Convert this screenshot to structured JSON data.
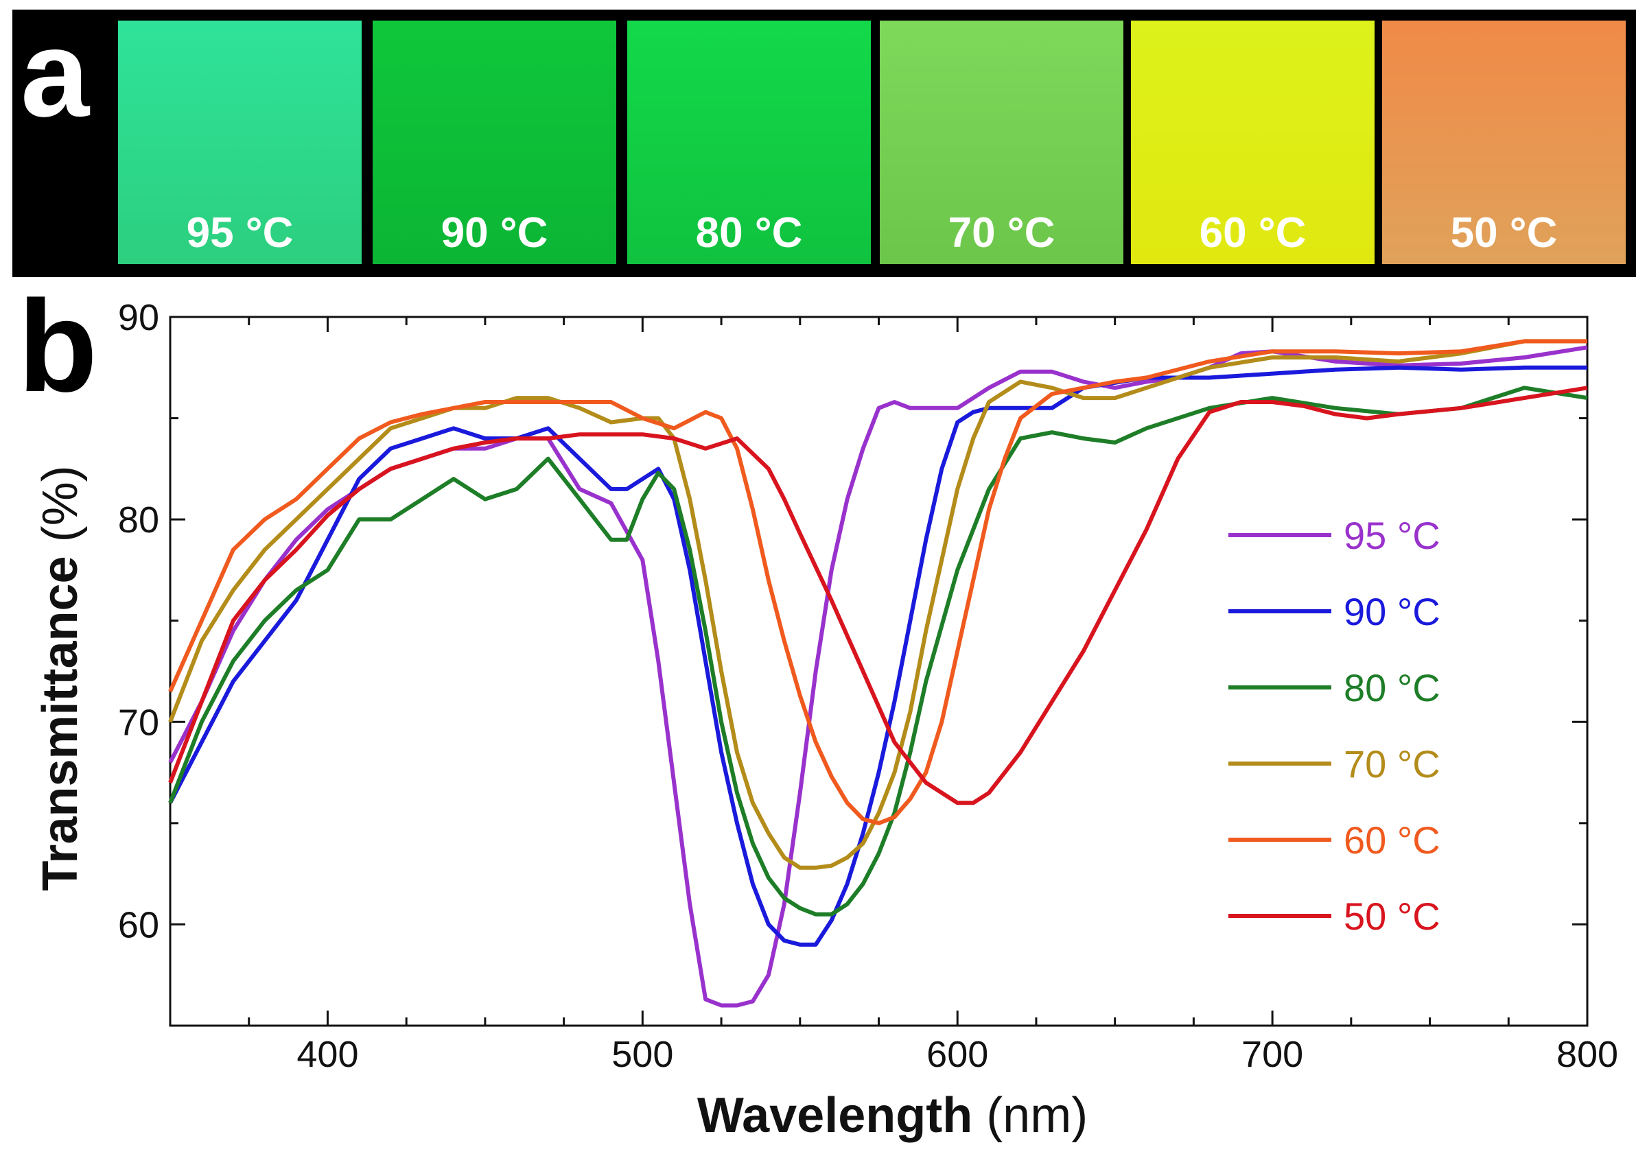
{
  "panel_a": {
    "label": "a",
    "swatches": [
      {
        "label": "95 °C",
        "color_top": "#2fe39a",
        "color_bottom": "#2ccf7e"
      },
      {
        "label": "90 °C",
        "color_top": "#0fc73a",
        "color_bottom": "#0bb535"
      },
      {
        "label": "80 °C",
        "color_top": "#13d94a",
        "color_bottom": "#10c23f"
      },
      {
        "label": "70 °C",
        "color_top": "#7ed85a",
        "color_bottom": "#6cc64a"
      },
      {
        "label": "60 °C",
        "color_top": "#dcf21a",
        "color_bottom": "#e1e810"
      },
      {
        "label": "50 °C",
        "color_top": "#f08a48",
        "color_bottom": "#e0a25a"
      }
    ]
  },
  "panel_b": {
    "label": "b"
  },
  "chart_data": {
    "type": "line",
    "xlabel_main": "Wavelength",
    "xlabel_unit": " (nm)",
    "ylabel_main": "Transmittance",
    "ylabel_unit": " (%)",
    "xlim": [
      350,
      800
    ],
    "ylim": [
      55,
      90
    ],
    "xticks": [
      400,
      500,
      600,
      700,
      800
    ],
    "yticks": [
      60,
      70,
      80,
      90
    ],
    "legend_position": "right",
    "series": [
      {
        "name": "95 °C",
        "color": "#9932cc",
        "x": [
          350,
          360,
          370,
          380,
          390,
          400,
          410,
          420,
          430,
          440,
          450,
          460,
          470,
          480,
          490,
          500,
          505,
          510,
          515,
          520,
          525,
          530,
          535,
          540,
          545,
          550,
          555,
          560,
          565,
          570,
          575,
          580,
          585,
          590,
          600,
          610,
          620,
          630,
          640,
          650,
          660,
          670,
          680,
          690,
          700,
          720,
          740,
          760,
          780,
          800
        ],
        "y": [
          68,
          71,
          74.5,
          77,
          79,
          80.5,
          81.5,
          82.5,
          83,
          83.5,
          83.5,
          84,
          84,
          81.5,
          80.8,
          78,
          73,
          67,
          61,
          56.3,
          56,
          56,
          56.2,
          57.5,
          61,
          66.5,
          72.5,
          77.5,
          81,
          83.5,
          85.5,
          85.8,
          85.5,
          85.5,
          85.5,
          86.5,
          87.3,
          87.3,
          86.8,
          86.5,
          86.8,
          87,
          87.5,
          88.2,
          88.3,
          87.8,
          87.6,
          87.7,
          88,
          88.5
        ]
      },
      {
        "name": "90 °C",
        "color": "#1a1adc",
        "x": [
          350,
          360,
          370,
          380,
          390,
          400,
          410,
          420,
          430,
          440,
          450,
          460,
          470,
          480,
          490,
          495,
          500,
          505,
          510,
          515,
          520,
          525,
          530,
          535,
          540,
          545,
          550,
          555,
          560,
          565,
          570,
          575,
          580,
          585,
          590,
          595,
          600,
          605,
          610,
          620,
          630,
          640,
          660,
          680,
          700,
          720,
          740,
          760,
          780,
          800
        ],
        "y": [
          66,
          69,
          72,
          74,
          76,
          79,
          82,
          83.5,
          84,
          84.5,
          84,
          84,
          84.5,
          83,
          81.5,
          81.5,
          82,
          82.5,
          81,
          77.5,
          73,
          68.5,
          65,
          62,
          60,
          59.2,
          59,
          59,
          60.2,
          62,
          64.5,
          67.5,
          71,
          75,
          79,
          82.5,
          84.8,
          85.3,
          85.5,
          85.5,
          85.5,
          86.5,
          87,
          87,
          87.2,
          87.4,
          87.5,
          87.4,
          87.5,
          87.5
        ]
      },
      {
        "name": "80 °C",
        "color": "#1e7e28",
        "x": [
          350,
          360,
          370,
          380,
          390,
          400,
          410,
          420,
          430,
          440,
          450,
          460,
          470,
          480,
          490,
          495,
          500,
          505,
          510,
          515,
          520,
          525,
          530,
          535,
          540,
          545,
          550,
          555,
          560,
          565,
          570,
          575,
          580,
          585,
          590,
          600,
          610,
          620,
          630,
          640,
          650,
          660,
          680,
          700,
          720,
          740,
          760,
          780,
          800
        ],
        "y": [
          66,
          70,
          73,
          75,
          76.5,
          77.5,
          80,
          80,
          81,
          82,
          81,
          81.5,
          83,
          81,
          79,
          79,
          81,
          82.3,
          81.5,
          78.5,
          74.5,
          70,
          66.5,
          64,
          62.3,
          61.3,
          60.8,
          60.5,
          60.5,
          61,
          62,
          63.5,
          65.5,
          68.5,
          72,
          77.5,
          81.5,
          84,
          84.3,
          84,
          83.8,
          84.5,
          85.5,
          86,
          85.5,
          85.2,
          85.5,
          86.5,
          86
        ]
      },
      {
        "name": "70 °C",
        "color": "#b38c1a",
        "x": [
          350,
          360,
          370,
          380,
          390,
          400,
          410,
          420,
          430,
          440,
          450,
          460,
          470,
          480,
          490,
          500,
          505,
          510,
          515,
          520,
          525,
          530,
          535,
          540,
          545,
          550,
          555,
          560,
          565,
          570,
          575,
          580,
          585,
          590,
          595,
          600,
          605,
          610,
          620,
          630,
          640,
          650,
          660,
          680,
          700,
          720,
          740,
          760,
          780,
          800
        ],
        "y": [
          70,
          74,
          76.5,
          78.5,
          80,
          81.5,
          83,
          84.5,
          85,
          85.5,
          85.5,
          86,
          86,
          85.5,
          84.8,
          85,
          85,
          84,
          81,
          77,
          72.5,
          68.5,
          66,
          64.5,
          63.3,
          62.8,
          62.8,
          62.9,
          63.3,
          64,
          65.5,
          67.5,
          70.5,
          74.5,
          78,
          81.5,
          84,
          85.8,
          86.8,
          86.5,
          86,
          86,
          86.5,
          87.5,
          88,
          88,
          87.8,
          88.2,
          88.8,
          88.8
        ]
      },
      {
        "name": "60 °C",
        "color": "#f05a1e",
        "x": [
          350,
          360,
          370,
          380,
          390,
          400,
          410,
          420,
          430,
          440,
          450,
          460,
          470,
          480,
          490,
          500,
          510,
          520,
          525,
          530,
          535,
          540,
          545,
          550,
          555,
          560,
          565,
          570,
          575,
          580,
          585,
          590,
          595,
          600,
          605,
          610,
          615,
          620,
          630,
          640,
          650,
          660,
          680,
          700,
          720,
          740,
          760,
          780,
          800
        ],
        "y": [
          71.5,
          75,
          78.5,
          80,
          81,
          82.5,
          84,
          84.8,
          85.2,
          85.5,
          85.8,
          85.8,
          85.8,
          85.8,
          85.8,
          85,
          84.5,
          85.3,
          85,
          83.5,
          80.5,
          77,
          74,
          71.3,
          69,
          67.3,
          66,
          65.2,
          65,
          65.3,
          66.2,
          67.5,
          70,
          73.5,
          77,
          80.5,
          83,
          85,
          86.2,
          86.5,
          86.8,
          87,
          87.8,
          88.3,
          88.3,
          88.2,
          88.3,
          88.8,
          88.8
        ]
      },
      {
        "name": "50 °C",
        "color": "#d8141e",
        "x": [
          350,
          360,
          370,
          380,
          390,
          400,
          410,
          420,
          430,
          440,
          450,
          460,
          470,
          480,
          490,
          500,
          510,
          520,
          530,
          540,
          545,
          550,
          560,
          570,
          580,
          590,
          600,
          605,
          610,
          620,
          630,
          640,
          650,
          660,
          670,
          680,
          690,
          700,
          710,
          720,
          730,
          740,
          760,
          780,
          800
        ],
        "y": [
          67,
          71,
          75,
          77,
          78.5,
          80.2,
          81.5,
          82.5,
          83,
          83.5,
          83.8,
          84,
          84,
          84.2,
          84.2,
          84.2,
          84,
          83.5,
          84,
          82.5,
          81,
          79.3,
          76,
          72.5,
          69,
          67,
          66,
          66,
          66.5,
          68.5,
          71,
          73.5,
          76.5,
          79.5,
          83,
          85.3,
          85.8,
          85.8,
          85.6,
          85.2,
          85,
          85.2,
          85.5,
          86,
          86.5
        ]
      }
    ]
  }
}
